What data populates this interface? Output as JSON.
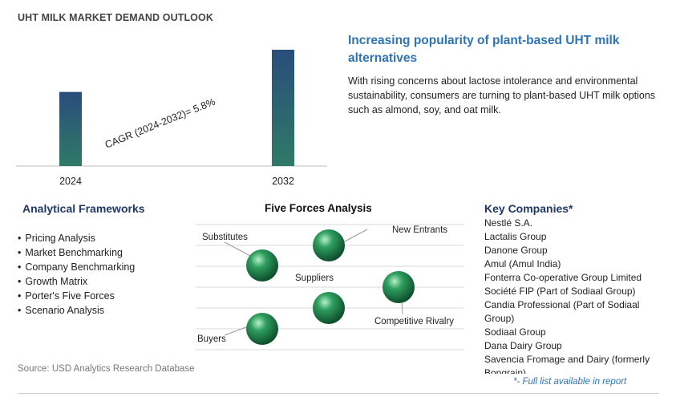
{
  "title": "UHT MILK MARKET DEMAND OUTLOOK",
  "chart_data": {
    "type": "bar",
    "categories": [
      "2024",
      "2032"
    ],
    "values": [
      1.0,
      1.57
    ],
    "annotation": "CAGR (2024-2032)=   5.8%",
    "grid": false,
    "colors": {
      "bar_top": "#2a4d7c",
      "bar_bottom": "#2f7a66"
    }
  },
  "insight": {
    "headline": "Increasing popularity of plant-based UHT milk alternatives",
    "description": "With rising concerns about lactose intolerance and environmental sustainability, consumers are turning to plant-based UHT milk options such as almond, soy, and oat milk."
  },
  "analytical_frameworks": {
    "title": "Analytical Frameworks",
    "items": [
      "Pricing Analysis",
      "Market Benchmarking",
      "Company Benchmarking",
      "Growth Matrix",
      "Porter's Five Forces",
      "Scenario Analysis"
    ]
  },
  "five_forces": {
    "title": "Five Forces Analysis",
    "labels": {
      "substitutes": "Substitutes",
      "new_entrants": "New Entrants",
      "suppliers": "Suppliers",
      "competitive_rivalry": "Competitive Rivalry",
      "buyers": "Buyers"
    },
    "sphere_color": "#2e9e5e"
  },
  "key_companies": {
    "title": "Key Companies*",
    "items": [
      "Nestlé S.A.",
      "Lactalis Group",
      "Danone Group",
      "Amul (Amul India)",
      "Fonterra Co-operative Group Limited",
      "Société FIP (Part of Sodiaal Group)",
      "Candia Professional (Part of Sodiaal Group)",
      "Sodiaal Group",
      "Dana Dairy Group",
      "Savencia Fromage and Dairy (formerly Bongrain)"
    ]
  },
  "source": "Source: USD Analytics Research Database",
  "footnote": "*- Full list available in report"
}
